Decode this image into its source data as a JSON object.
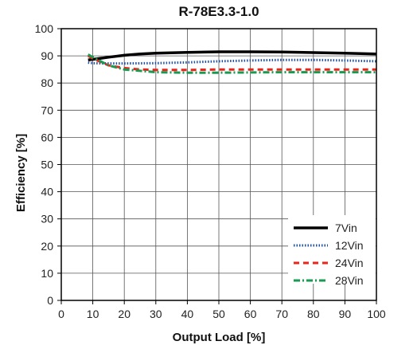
{
  "chart_data": {
    "type": "line",
    "title": "R-78E3.3-1.0",
    "xlabel": "Output Load [%]",
    "ylabel": "Efficiency [%]",
    "xlim": [
      0,
      100
    ],
    "ylim": [
      0,
      100
    ],
    "xticks": [
      0,
      10,
      20,
      30,
      40,
      50,
      60,
      70,
      80,
      90,
      100
    ],
    "yticks": [
      0,
      10,
      20,
      30,
      40,
      50,
      60,
      70,
      80,
      90,
      100
    ],
    "grid": true,
    "legend_position": "bottom-right",
    "series": [
      {
        "name": "7Vin",
        "color": "#000000",
        "style": "solid",
        "x": [
          8.5,
          10,
          15,
          20,
          25,
          30,
          40,
          50,
          60,
          70,
          80,
          90,
          100
        ],
        "y": [
          88.5,
          88.7,
          89.5,
          90.2,
          90.7,
          91.0,
          91.3,
          91.5,
          91.5,
          91.4,
          91.2,
          91.0,
          90.7
        ]
      },
      {
        "name": "12Vin",
        "color": "#1f4fa8",
        "style": "dotted",
        "x": [
          8.5,
          10,
          15,
          20,
          30,
          40,
          50,
          60,
          70,
          80,
          90,
          100
        ],
        "y": [
          87.5,
          87.3,
          87.2,
          87.2,
          87.3,
          87.6,
          88.0,
          88.3,
          88.5,
          88.5,
          88.3,
          88.0
        ]
      },
      {
        "name": "24Vin",
        "color": "#e8271b",
        "style": "dashed",
        "x": [
          8.5,
          10,
          15,
          20,
          25,
          30,
          40,
          50,
          60,
          70,
          80,
          90,
          100
        ],
        "y": [
          90.0,
          89.0,
          86.5,
          85.5,
          85.0,
          84.8,
          84.8,
          85.0,
          85.0,
          85.0,
          85.0,
          85.0,
          85.0
        ]
      },
      {
        "name": "28Vin",
        "color": "#1a9a50",
        "style": "dashdot",
        "x": [
          8.5,
          10,
          15,
          20,
          25,
          30,
          40,
          50,
          60,
          70,
          80,
          90,
          100
        ],
        "y": [
          90.5,
          89.5,
          86.5,
          85.0,
          84.5,
          84.0,
          83.8,
          83.8,
          83.9,
          84.0,
          84.0,
          84.0,
          84.0
        ]
      }
    ]
  }
}
